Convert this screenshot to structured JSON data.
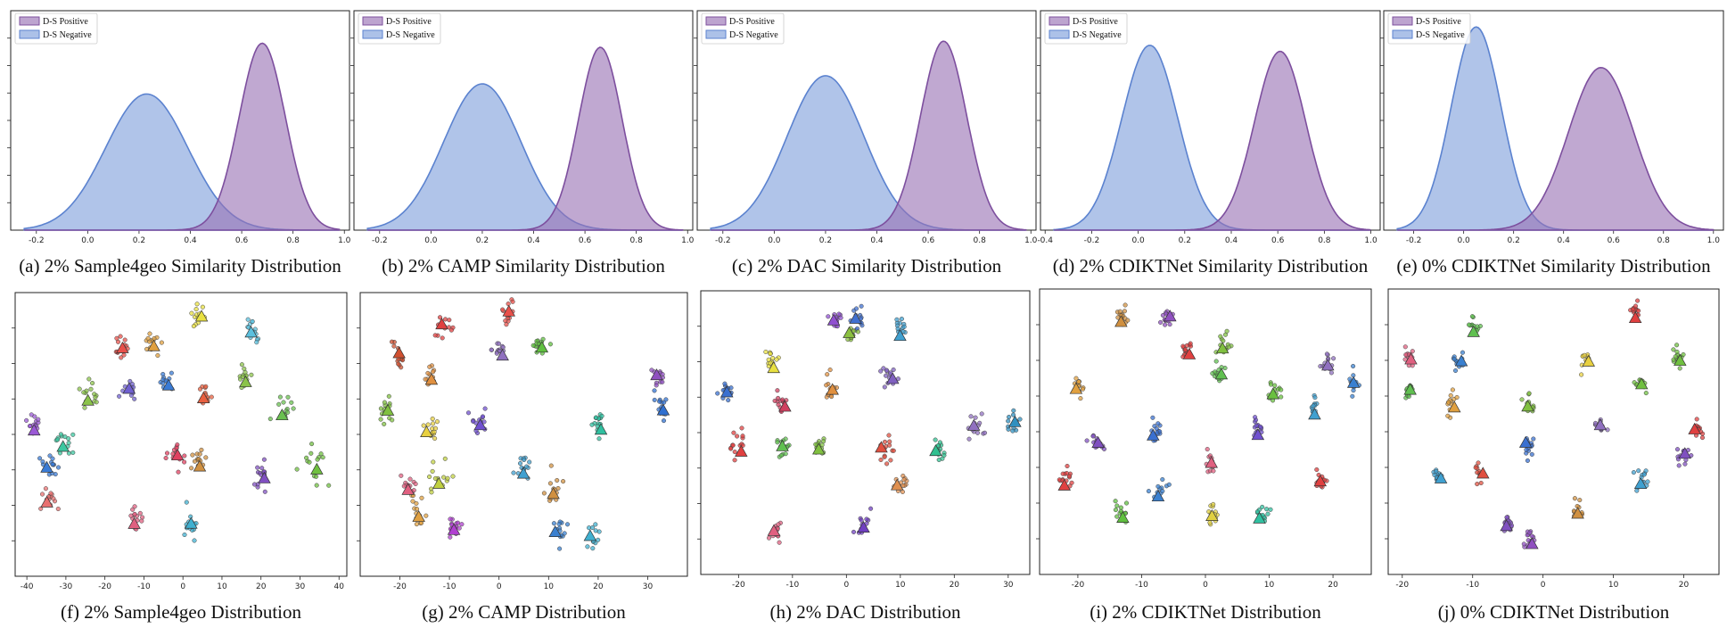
{
  "figure": {
    "colors": {
      "positive": "#9a73b5",
      "positive_edge": "#7d4f9e",
      "negative": "#7f9fdb",
      "negative_edge": "#5b82cf"
    },
    "legend": {
      "positive_label": "D-S Positive",
      "negative_label": "D-S Negative"
    }
  },
  "chart_data": [
    {
      "id": "a",
      "type": "area",
      "caption": "(a) 2% Sample4geo  Similarity Distribution",
      "xlim": [
        -0.3,
        1.02
      ],
      "xticks": [
        -0.2,
        0.0,
        0.2,
        0.4,
        0.6,
        0.8,
        1.0
      ],
      "xtick_labels": [
        "-0.2",
        "0.0",
        "0.2",
        "0.4",
        "0.6",
        "0.8",
        "1.0"
      ],
      "ylim": [
        0,
        1.08
      ],
      "series": [
        {
          "name": "D-S Positive",
          "mean": 0.68,
          "sd": 0.09,
          "peak": 0.92
        },
        {
          "name": "D-S Negative",
          "mean": 0.23,
          "sd": 0.16,
          "peak": 0.67
        }
      ]
    },
    {
      "id": "b",
      "type": "area",
      "caption": "(b) 2% CAMP  Similarity Distribution",
      "xlim": [
        -0.3,
        1.02
      ],
      "xticks": [
        -0.2,
        0.0,
        0.2,
        0.4,
        0.6,
        0.8,
        1.0
      ],
      "xtick_labels": [
        "-0.2",
        "0.0",
        "0.2",
        "0.4",
        "0.6",
        "0.8",
        "1.0"
      ],
      "ylim": [
        0,
        1.08
      ],
      "series": [
        {
          "name": "D-S Positive",
          "mean": 0.66,
          "sd": 0.085,
          "peak": 0.9
        },
        {
          "name": "D-S Negative",
          "mean": 0.2,
          "sd": 0.15,
          "peak": 0.72
        }
      ]
    },
    {
      "id": "c",
      "type": "area",
      "caption": "(c) 2% DAC  Similarity Distribution",
      "xlim": [
        -0.3,
        1.02
      ],
      "xticks": [
        -0.2,
        0.0,
        0.2,
        0.4,
        0.6,
        0.8,
        1.0
      ],
      "xtick_labels": [
        "-0.2",
        "0.0",
        "0.2",
        "0.4",
        "0.6",
        "0.8",
        "1.0"
      ],
      "ylim": [
        0,
        1.08
      ],
      "series": [
        {
          "name": "D-S Positive",
          "mean": 0.66,
          "sd": 0.09,
          "peak": 0.93
        },
        {
          "name": "D-S Negative",
          "mean": 0.2,
          "sd": 0.15,
          "peak": 0.76
        }
      ]
    },
    {
      "id": "d",
      "type": "area",
      "caption": "(d) 2% CDIKTNet Similarity Distribution",
      "xlim": [
        -0.42,
        1.04
      ],
      "xticks": [
        -0.4,
        -0.2,
        0.0,
        0.2,
        0.4,
        0.6,
        0.8,
        1.0
      ],
      "xtick_labels": [
        "-0.4",
        "-0.2",
        "0.0",
        "0.2",
        "0.4",
        "0.6",
        "0.8",
        "1.0"
      ],
      "ylim": [
        0,
        1.08
      ],
      "series": [
        {
          "name": "D-S Positive",
          "mean": 0.61,
          "sd": 0.11,
          "peak": 0.88
        },
        {
          "name": "D-S Negative",
          "mean": 0.05,
          "sd": 0.12,
          "peak": 0.91
        }
      ]
    },
    {
      "id": "e",
      "type": "area",
      "caption": "(e) 0% CDIKTNet Similarity Distribution",
      "xlim": [
        -0.32,
        1.04
      ],
      "xticks": [
        -0.2,
        0.0,
        0.2,
        0.4,
        0.6,
        0.8,
        1.0
      ],
      "xtick_labels": [
        "-0.2",
        "0.0",
        "0.2",
        "0.4",
        "0.6",
        "0.8",
        "1.0"
      ],
      "ylim": [
        0,
        1.08
      ],
      "series": [
        {
          "name": "D-S Positive",
          "mean": 0.55,
          "sd": 0.13,
          "peak": 0.8
        },
        {
          "name": "D-S Negative",
          "mean": 0.05,
          "sd": 0.1,
          "peak": 1.0
        }
      ]
    },
    {
      "id": "f",
      "type": "scatter",
      "caption": "(f) 2% Sample4geo Distribution",
      "xlim": [
        -43,
        42
      ],
      "xticks": [
        -40,
        -30,
        -20,
        -10,
        0,
        10,
        20,
        30,
        40
      ],
      "xtick_labels": [
        "-40",
        "-30",
        "-20",
        "-10",
        "0",
        "10",
        "20",
        "30",
        "40"
      ],
      "ylim": [
        -1,
        1
      ],
      "clusters": [
        {
          "x": -38,
          "y": 0.08,
          "s": 1.0,
          "c": "#9b59d6"
        },
        {
          "x": -34,
          "y": -0.25,
          "s": 1.0,
          "c": "#3a7bd5"
        },
        {
          "x": -30,
          "y": -0.05,
          "s": 1.2,
          "c": "#3cc7a0"
        },
        {
          "x": -24,
          "y": 0.3,
          "s": 1.2,
          "c": "#8bc34a"
        },
        {
          "x": -16,
          "y": 0.68,
          "s": 1.0,
          "c": "#e8504a"
        },
        {
          "x": -8,
          "y": 0.72,
          "s": 1.0,
          "c": "#e0a040"
        },
        {
          "x": 4,
          "y": 0.95,
          "s": 1.0,
          "c": "#e8e040"
        },
        {
          "x": 18,
          "y": 0.8,
          "s": 0.9,
          "c": "#5bc0de"
        },
        {
          "x": -14,
          "y": 0.35,
          "s": 1.0,
          "c": "#7060d0"
        },
        {
          "x": -4,
          "y": 0.42,
          "s": 1.0,
          "c": "#3a7bd5"
        },
        {
          "x": 6,
          "y": 0.3,
          "s": 1.1,
          "c": "#e86040"
        },
        {
          "x": 16,
          "y": 0.45,
          "s": 1.0,
          "c": "#8bc34a"
        },
        {
          "x": 26,
          "y": 0.18,
          "s": 1.0,
          "c": "#6ac050"
        },
        {
          "x": -2,
          "y": -0.15,
          "s": 1.0,
          "c": "#e04060"
        },
        {
          "x": 4,
          "y": -0.2,
          "s": 1.0,
          "c": "#d09040"
        },
        {
          "x": 20,
          "y": -0.3,
          "s": 1.0,
          "c": "#8050c0"
        },
        {
          "x": 34,
          "y": -0.25,
          "s": 1.6,
          "c": "#70c040"
        },
        {
          "x": -12,
          "y": -0.65,
          "s": 0.9,
          "c": "#e06080"
        },
        {
          "x": 2,
          "y": -0.7,
          "s": 1.0,
          "c": "#40b0d0"
        },
        {
          "x": -34,
          "y": -0.5,
          "s": 0.9,
          "c": "#e87070"
        }
      ]
    },
    {
      "id": "g",
      "type": "scatter",
      "caption": "(g) 2% CAMP Distribution",
      "xlim": [
        -28,
        38
      ],
      "xticks": [
        -20,
        -10,
        0,
        10,
        20,
        30
      ],
      "xtick_labels": [
        "-20",
        "-10",
        "0",
        "10",
        "20",
        "30"
      ],
      "ylim": [
        -1,
        1
      ],
      "clusters": [
        {
          "x": 2,
          "y": 0.95,
          "s": 1.0,
          "c": "#e8504a"
        },
        {
          "x": -11,
          "y": 0.85,
          "s": 0.9,
          "c": "#e04040"
        },
        {
          "x": -20,
          "y": 0.62,
          "s": 1.0,
          "c": "#d05030"
        },
        {
          "x": -14,
          "y": 0.45,
          "s": 1.0,
          "c": "#e09040"
        },
        {
          "x": 0,
          "y": 0.65,
          "s": 0.9,
          "c": "#9070c0"
        },
        {
          "x": 8,
          "y": 0.68,
          "s": 0.9,
          "c": "#60c040"
        },
        {
          "x": -23,
          "y": 0.2,
          "s": 1.1,
          "c": "#80c040"
        },
        {
          "x": -14,
          "y": 0.05,
          "s": 1.0,
          "c": "#e8d040"
        },
        {
          "x": -4,
          "y": 0.12,
          "s": 1.0,
          "c": "#7050d0"
        },
        {
          "x": 32,
          "y": 0.45,
          "s": 0.9,
          "c": "#9050c0"
        },
        {
          "x": 33,
          "y": 0.22,
          "s": 0.9,
          "c": "#3070d0"
        },
        {
          "x": 20,
          "y": 0.08,
          "s": 0.9,
          "c": "#30c0a0"
        },
        {
          "x": 5,
          "y": -0.25,
          "s": 0.9,
          "c": "#40a0d0"
        },
        {
          "x": -12,
          "y": -0.35,
          "s": 1.4,
          "c": "#c0d040"
        },
        {
          "x": -16,
          "y": -0.6,
          "s": 1.2,
          "c": "#e0a040"
        },
        {
          "x": -18,
          "y": -0.38,
          "s": 0.9,
          "c": "#e06080"
        },
        {
          "x": 11,
          "y": -0.45,
          "s": 1.0,
          "c": "#d09040"
        },
        {
          "x": 12,
          "y": -0.72,
          "s": 1.0,
          "c": "#3a80d0"
        },
        {
          "x": 19,
          "y": -0.8,
          "s": 0.9,
          "c": "#40b0d0"
        },
        {
          "x": -9,
          "y": -0.7,
          "s": 0.9,
          "c": "#b040d0"
        }
      ]
    },
    {
      "id": "h",
      "type": "scatter",
      "caption": "(h) 2% DAC Distribution",
      "xlim": [
        -27,
        34
      ],
      "xticks": [
        -20,
        -10,
        0,
        10,
        20,
        30
      ],
      "xtick_labels": [
        "-20",
        "-10",
        "0",
        "10",
        "20",
        "30"
      ],
      "ylim": [
        -1,
        1
      ],
      "clusters": [
        {
          "x": -2,
          "y": 0.9,
          "s": 0.9,
          "c": "#9050d0"
        },
        {
          "x": 2,
          "y": 0.88,
          "s": 0.9,
          "c": "#4070d0"
        },
        {
          "x": 1,
          "y": 0.76,
          "s": 0.9,
          "c": "#8bc040"
        },
        {
          "x": 10,
          "y": 0.8,
          "s": 0.9,
          "c": "#40a0d0"
        },
        {
          "x": -14,
          "y": 0.55,
          "s": 0.9,
          "c": "#e8e040"
        },
        {
          "x": -22,
          "y": 0.32,
          "s": 0.9,
          "c": "#3a70d0"
        },
        {
          "x": -12,
          "y": 0.25,
          "s": 0.9,
          "c": "#d04060"
        },
        {
          "x": -3,
          "y": 0.35,
          "s": 0.9,
          "c": "#e09040"
        },
        {
          "x": 8,
          "y": 0.42,
          "s": 0.9,
          "c": "#8060c0"
        },
        {
          "x": -20,
          "y": -0.1,
          "s": 1.0,
          "c": "#e04040"
        },
        {
          "x": -12,
          "y": -0.12,
          "s": 1.0,
          "c": "#60c050"
        },
        {
          "x": -5,
          "y": -0.1,
          "s": 1.0,
          "c": "#80c040"
        },
        {
          "x": 7,
          "y": -0.12,
          "s": 1.0,
          "c": "#e05040"
        },
        {
          "x": 17,
          "y": -0.12,
          "s": 1.0,
          "c": "#30c090"
        },
        {
          "x": 24,
          "y": 0.05,
          "s": 1.0,
          "c": "#9070c0"
        },
        {
          "x": 31,
          "y": 0.08,
          "s": 0.9,
          "c": "#3090c0"
        },
        {
          "x": 10,
          "y": -0.4,
          "s": 0.8,
          "c": "#e09050"
        },
        {
          "x": 3,
          "y": -0.7,
          "s": 1.0,
          "c": "#7040c0"
        },
        {
          "x": -13,
          "y": -0.75,
          "s": 0.9,
          "c": "#e06080"
        }
      ]
    },
    {
      "id": "i",
      "type": "scatter",
      "caption": "(i) 2% CDIKTNet Distribution",
      "xlim": [
        -26,
        26
      ],
      "xticks": [
        -20,
        -10,
        0,
        10,
        20
      ],
      "xtick_labels": [
        "-20",
        "-10",
        "0",
        "10",
        "20"
      ],
      "ylim": [
        -1,
        1
      ],
      "clusters": [
        {
          "x": -13,
          "y": 0.88,
          "s": 0.8,
          "c": "#d09040"
        },
        {
          "x": -6,
          "y": 0.9,
          "s": 0.8,
          "c": "#9050c0"
        },
        {
          "x": -20,
          "y": 0.35,
          "s": 0.8,
          "c": "#e0a040"
        },
        {
          "x": -3,
          "y": 0.62,
          "s": 0.8,
          "c": "#e04040"
        },
        {
          "x": 3,
          "y": 0.68,
          "s": 0.8,
          "c": "#80c040"
        },
        {
          "x": 2,
          "y": 0.45,
          "s": 0.8,
          "c": "#60c050"
        },
        {
          "x": 11,
          "y": 0.3,
          "s": 0.8,
          "c": "#6ac040"
        },
        {
          "x": 19,
          "y": 0.52,
          "s": 0.8,
          "c": "#9070c0"
        },
        {
          "x": 23,
          "y": 0.38,
          "s": 0.8,
          "c": "#3a80d0"
        },
        {
          "x": 17,
          "y": 0.18,
          "s": 0.8,
          "c": "#40a0d0"
        },
        {
          "x": -17,
          "y": -0.1,
          "s": 0.8,
          "c": "#8050c0"
        },
        {
          "x": -8,
          "y": 0.0,
          "s": 0.8,
          "c": "#3a70d0"
        },
        {
          "x": 8,
          "y": 0.02,
          "s": 0.8,
          "c": "#7050d0"
        },
        {
          "x": 1,
          "y": -0.25,
          "s": 0.8,
          "c": "#e06080"
        },
        {
          "x": -22,
          "y": -0.38,
          "s": 0.8,
          "c": "#e04040"
        },
        {
          "x": -7,
          "y": -0.45,
          "s": 0.8,
          "c": "#3a80d0"
        },
        {
          "x": -13,
          "y": -0.62,
          "s": 0.8,
          "c": "#60c040"
        },
        {
          "x": 1,
          "y": -0.62,
          "s": 0.8,
          "c": "#e0d040"
        },
        {
          "x": 9,
          "y": -0.65,
          "s": 0.8,
          "c": "#30c0a0"
        },
        {
          "x": 18,
          "y": -0.38,
          "s": 0.8,
          "c": "#e04040"
        }
      ]
    },
    {
      "id": "j",
      "type": "scatter",
      "caption": "(j) 0% CDIKTNet Distribution",
      "xlim": [
        -22,
        25
      ],
      "xticks": [
        -20,
        -10,
        0,
        10,
        20
      ],
      "xtick_labels": [
        "-20",
        "-10",
        "0",
        "10",
        "20"
      ],
      "ylim": [
        -1,
        1
      ],
      "clusters": [
        {
          "x": 13,
          "y": 0.92,
          "s": 0.7,
          "c": "#e04040"
        },
        {
          "x": -10,
          "y": 0.8,
          "s": 0.7,
          "c": "#60c050"
        },
        {
          "x": -19,
          "y": 0.58,
          "s": 0.7,
          "c": "#e06080"
        },
        {
          "x": -12,
          "y": 0.55,
          "s": 0.7,
          "c": "#3a80d0"
        },
        {
          "x": 6,
          "y": 0.55,
          "s": 0.8,
          "c": "#e8d040"
        },
        {
          "x": 19,
          "y": 0.58,
          "s": 0.7,
          "c": "#70c040"
        },
        {
          "x": -19,
          "y": 0.32,
          "s": 0.7,
          "c": "#60c050"
        },
        {
          "x": -13,
          "y": 0.22,
          "s": 0.8,
          "c": "#e0a040"
        },
        {
          "x": -2,
          "y": 0.2,
          "s": 0.7,
          "c": "#80c040"
        },
        {
          "x": 14,
          "y": 0.38,
          "s": 0.7,
          "c": "#70c040"
        },
        {
          "x": 8,
          "y": 0.05,
          "s": 0.7,
          "c": "#9070c0"
        },
        {
          "x": 22,
          "y": 0.02,
          "s": 0.7,
          "c": "#e04040"
        },
        {
          "x": -2,
          "y": -0.1,
          "s": 0.8,
          "c": "#3a70d0"
        },
        {
          "x": -15,
          "y": -0.32,
          "s": 0.7,
          "c": "#40a0d0"
        },
        {
          "x": -9,
          "y": -0.32,
          "s": 0.7,
          "c": "#e05040"
        },
        {
          "x": 14,
          "y": -0.35,
          "s": 0.8,
          "c": "#40a0d0"
        },
        {
          "x": 20,
          "y": -0.18,
          "s": 0.7,
          "c": "#8050c0"
        },
        {
          "x": -5,
          "y": -0.7,
          "s": 0.7,
          "c": "#8050c0"
        },
        {
          "x": 5,
          "y": -0.62,
          "s": 0.7,
          "c": "#d09040"
        },
        {
          "x": -2,
          "y": -0.82,
          "s": 0.7,
          "c": "#9050c0"
        }
      ]
    }
  ]
}
